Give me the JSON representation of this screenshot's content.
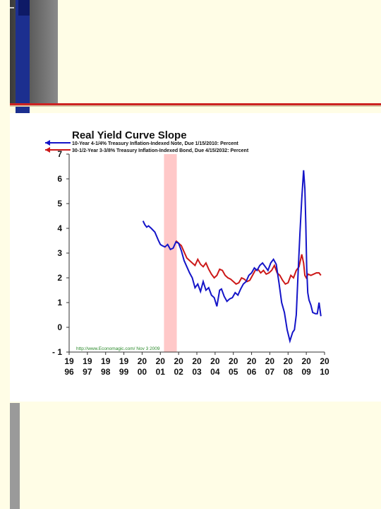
{
  "chart_data": {
    "type": "line",
    "title": "Real Yield Curve Slope",
    "xlabel": "",
    "ylabel": "",
    "ylim": [
      -1,
      7
    ],
    "yticks": [
      -1,
      0,
      1,
      2,
      3,
      4,
      5,
      6,
      7
    ],
    "xticks": [
      {
        "top": "19",
        "bottom": "96"
      },
      {
        "top": "19",
        "bottom": "97"
      },
      {
        "top": "19",
        "bottom": "98"
      },
      {
        "top": "19",
        "bottom": "99"
      },
      {
        "top": "20",
        "bottom": "00"
      },
      {
        "top": "20",
        "bottom": "01"
      },
      {
        "top": "20",
        "bottom": "02"
      },
      {
        "top": "20",
        "bottom": "03"
      },
      {
        "top": "20",
        "bottom": "04"
      },
      {
        "top": "20",
        "bottom": "05"
      },
      {
        "top": "20",
        "bottom": "06"
      },
      {
        "top": "20",
        "bottom": "07"
      },
      {
        "top": "20",
        "bottom": "08"
      },
      {
        "top": "20",
        "bottom": "09"
      },
      {
        "top": "20",
        "bottom": "10"
      }
    ],
    "xlim": [
      1996,
      2010
    ],
    "grid": false,
    "legend_position": "top-left",
    "recession_band": {
      "start": 2001.2,
      "end": 2001.9,
      "color": "#ffc8c8"
    },
    "source_note": "http://www.Economagic.com/  Nov 3 2009",
    "series": [
      {
        "name": "10-Year 4-1/4% Treasury Inflation-Indexed Note, Due 1/15/2010: Percent",
        "color": "#1414c8",
        "x": [
          2000.05,
          2000.15,
          2000.25,
          2000.35,
          2000.5,
          2000.7,
          2000.9,
          2001.0,
          2001.1,
          2001.25,
          2001.4,
          2001.55,
          2001.7,
          2001.85,
          2002.0,
          2002.15,
          2002.3,
          2002.45,
          2002.6,
          2002.75,
          2002.9,
          2003.05,
          2003.2,
          2003.35,
          2003.5,
          2003.65,
          2003.8,
          2003.95,
          2004.1,
          2004.25,
          2004.35,
          2004.5,
          2004.65,
          2004.8,
          2004.95,
          2005.1,
          2005.25,
          2005.4,
          2005.55,
          2005.7,
          2005.85,
          2006.0,
          2006.15,
          2006.3,
          2006.45,
          2006.6,
          2006.75,
          2006.9,
          2007.05,
          2007.2,
          2007.35,
          2007.5,
          2007.65,
          2007.8,
          2007.95,
          2008.1,
          2008.25,
          2008.35,
          2008.45,
          2008.55,
          2008.65,
          2008.75,
          2008.85,
          2008.92,
          2008.97,
          2009.02,
          2009.08,
          2009.15,
          2009.25,
          2009.35,
          2009.5,
          2009.6,
          2009.7,
          2009.8
        ],
        "values": [
          4.3,
          4.15,
          4.05,
          4.1,
          4.0,
          3.85,
          3.5,
          3.35,
          3.3,
          3.25,
          3.35,
          3.15,
          3.2,
          3.45,
          3.4,
          3.1,
          2.7,
          2.45,
          2.2,
          2.0,
          1.6,
          1.75,
          1.45,
          1.85,
          1.5,
          1.6,
          1.3,
          1.2,
          0.85,
          1.5,
          1.55,
          1.25,
          1.05,
          1.15,
          1.2,
          1.4,
          1.3,
          1.55,
          1.75,
          1.85,
          2.1,
          2.2,
          2.4,
          2.3,
          2.5,
          2.6,
          2.45,
          2.3,
          2.6,
          2.75,
          2.55,
          1.8,
          1.0,
          0.6,
          -0.1,
          -0.55,
          -0.2,
          -0.1,
          0.5,
          2.2,
          3.8,
          5.2,
          6.35,
          5.6,
          4.2,
          2.4,
          1.4,
          1.1,
          0.9,
          0.6,
          0.55,
          0.55,
          1.0,
          0.45
        ]
      },
      {
        "name": "30-1/2-Year 3-3/8% Treasury Inflation-Indexed Bond, Due 4/15/2032: Percent",
        "color": "#cc1818",
        "x": [
          2001.85,
          2002.0,
          2002.15,
          2002.3,
          2002.45,
          2002.6,
          2002.75,
          2002.9,
          2003.05,
          2003.2,
          2003.35,
          2003.5,
          2003.65,
          2003.8,
          2003.95,
          2004.1,
          2004.25,
          2004.4,
          2004.55,
          2004.7,
          2004.85,
          2005.0,
          2005.15,
          2005.3,
          2005.45,
          2005.6,
          2005.75,
          2005.9,
          2006.05,
          2006.2,
          2006.35,
          2006.5,
          2006.65,
          2006.8,
          2006.95,
          2007.1,
          2007.25,
          2007.4,
          2007.55,
          2007.7,
          2007.85,
          2008.0,
          2008.15,
          2008.3,
          2008.45,
          2008.6,
          2008.75,
          2008.85,
          2008.92,
          2009.0,
          2009.1,
          2009.25,
          2009.4,
          2009.55,
          2009.7,
          2009.8
        ],
        "values": [
          3.5,
          3.4,
          3.3,
          3.05,
          2.8,
          2.7,
          2.6,
          2.5,
          2.75,
          2.55,
          2.45,
          2.6,
          2.35,
          2.15,
          2.0,
          2.1,
          2.35,
          2.3,
          2.1,
          2.0,
          1.95,
          1.85,
          1.75,
          1.8,
          2.0,
          1.95,
          1.85,
          1.9,
          2.1,
          2.3,
          2.35,
          2.2,
          2.3,
          2.15,
          2.2,
          2.3,
          2.5,
          2.2,
          2.1,
          1.9,
          1.75,
          1.8,
          2.1,
          2.0,
          2.3,
          2.45,
          2.95,
          2.6,
          2.1,
          2.0,
          2.15,
          2.1,
          2.15,
          2.2,
          2.2,
          2.1
        ]
      }
    ]
  }
}
